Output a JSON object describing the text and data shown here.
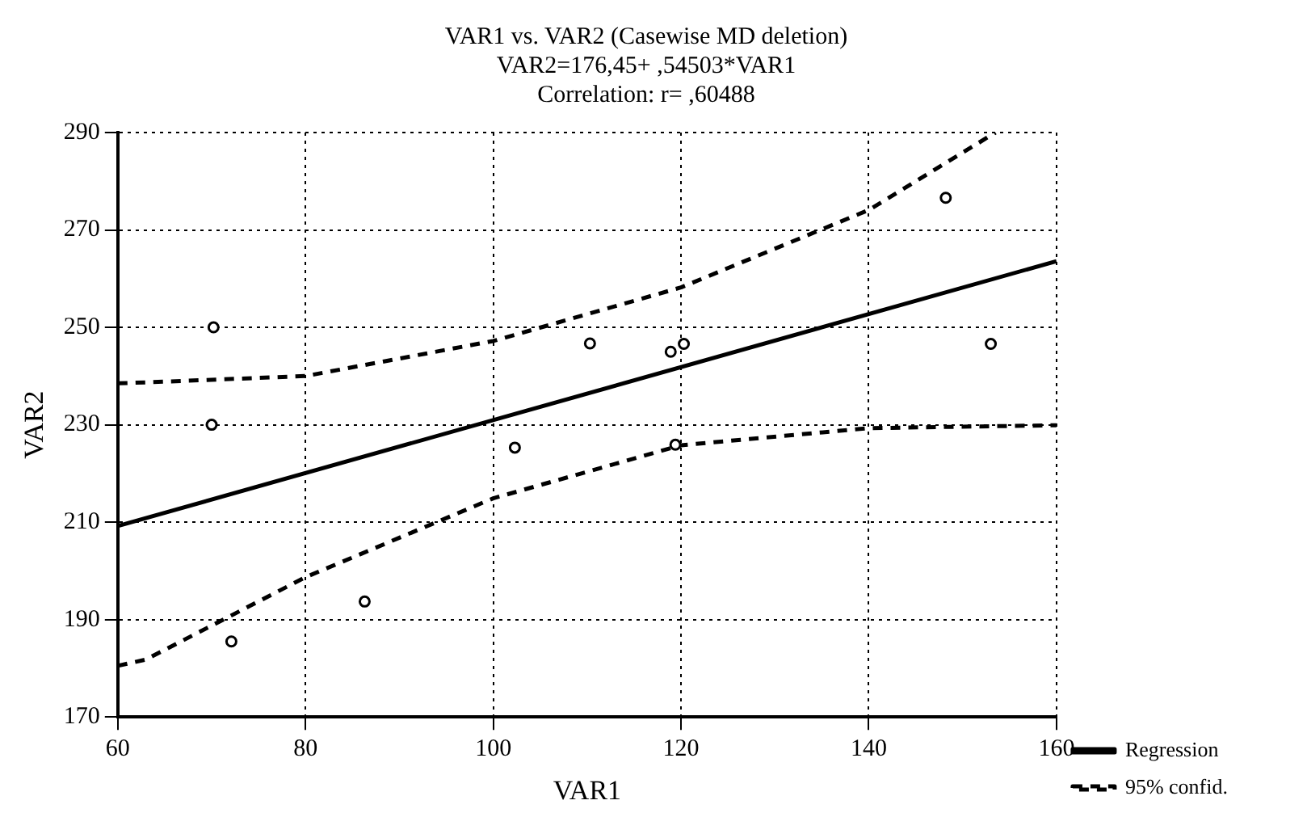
{
  "chart_data": {
    "type": "scatter",
    "title": "VAR1 vs. VAR2 (Casewise MD deletion)",
    "subtitle": "VAR2=176,45+ ,54503*VAR1",
    "annotations": [
      "Correlation: r= ,60488"
    ],
    "xlabel": "VAR1",
    "ylabel": "VAR2",
    "xlim": [
      60,
      160
    ],
    "xticks": [
      60,
      80,
      100,
      120,
      140,
      160
    ],
    "ylim": [
      170,
      290
    ],
    "yticks": [
      170,
      190,
      210,
      230,
      250,
      270,
      290
    ],
    "grid": true,
    "legend": "bottom right",
    "series": [
      {
        "type": "scatter",
        "color": "#000000",
        "marker": "circle",
        "x": [
          70.2,
          70,
          72.1,
          86.3,
          102.3,
          110.3,
          118.9,
          119.4,
          120.3,
          148.2,
          153
        ],
        "values": [
          250,
          230,
          185.5,
          193.7,
          225.3,
          246.7,
          245,
          225.9,
          246.6,
          276.6,
          246.6
        ]
      },
      {
        "type": "line",
        "name": "Regression",
        "color": "#000000",
        "marker": "none",
        "line_style": "solid",
        "x": [
          60,
          160
        ],
        "values": [
          209.2,
          263.6
        ]
      },
      {
        "type": "line",
        "name": "95% confid.",
        "color": "#000000",
        "marker": "none",
        "line_style": "dashed",
        "x": [
          60,
          63,
          80,
          100,
          120,
          140,
          153.5
        ],
        "values": [
          238.5,
          238.7,
          240,
          247.2,
          258.2,
          274.1,
          290
        ]
      },
      {
        "type": "line",
        "color": "#000000",
        "marker": "none",
        "line_style": "dashed",
        "x": [
          60,
          63,
          80,
          100,
          120,
          140,
          160
        ],
        "values": [
          180.5,
          181.8,
          198.7,
          214.9,
          225.8,
          229.3,
          229.9
        ]
      }
    ]
  }
}
